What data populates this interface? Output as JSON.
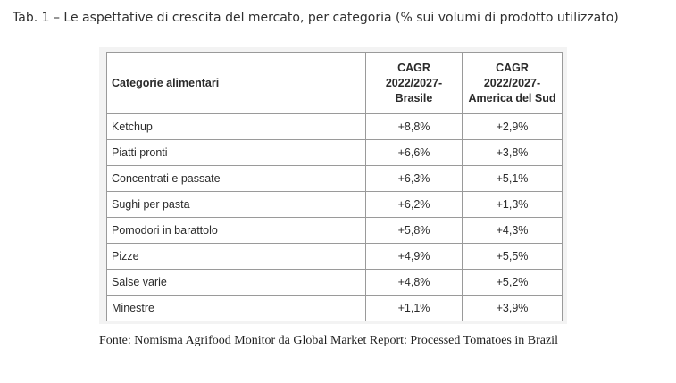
{
  "caption": "Tab. 1 – Le aspettative di crescita del mercato, per categoria (% sui volumi di prodotto utilizzato)",
  "table": {
    "headers": {
      "category": "Categorie alimentari",
      "brazil": [
        "CAGR",
        "2022/2027-",
        "Brasile"
      ],
      "south_america": [
        "CAGR",
        "2022/2027-",
        "America del Sud"
      ]
    },
    "rows": [
      {
        "category": "Ketchup",
        "brazil": "+8,8%",
        "south_america": "+2,9%"
      },
      {
        "category": "Piatti pronti",
        "brazil": "+6,6%",
        "south_america": "+3,8%"
      },
      {
        "category": "Concentrati e passate",
        "brazil": "+6,3%",
        "south_america": "+5,1%"
      },
      {
        "category": "Sughi per pasta",
        "brazil": "+6,2%",
        "south_america": "+1,3%"
      },
      {
        "category": "Pomodori in barattolo",
        "brazil": "+5,8%",
        "south_america": "+4,3%"
      },
      {
        "category": "Pizze",
        "brazil": "+4,9%",
        "south_america": "+5,5%"
      },
      {
        "category": "Salse varie",
        "brazil": "+4,8%",
        "south_america": "+5,2%"
      },
      {
        "category": "Minestre",
        "brazil": "+1,1%",
        "south_america": "+3,9%"
      }
    ]
  },
  "source": "Fonte: Nomisma Agrifood Monitor da Global Market Report: Processed Tomatoes in Brazil"
}
